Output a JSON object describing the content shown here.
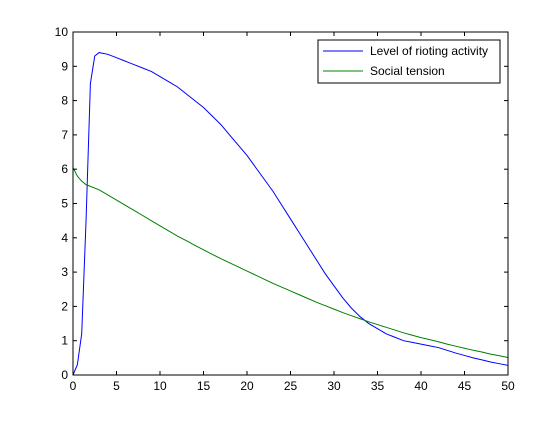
{
  "chart_data": {
    "type": "line",
    "title": "",
    "xlabel": "",
    "ylabel": "",
    "xlim": [
      0,
      50
    ],
    "ylim": [
      0,
      10
    ],
    "x_ticks": [
      "0",
      "5",
      "10",
      "15",
      "20",
      "25",
      "30",
      "35",
      "40",
      "45",
      "50"
    ],
    "y_ticks": [
      "0",
      "1",
      "2",
      "3",
      "4",
      "5",
      "6",
      "7",
      "8",
      "9",
      "10"
    ],
    "grid": false,
    "legend_position": "top-right",
    "series": [
      {
        "name": "Level of rioting activity",
        "color": "#0000ff",
        "points": [
          [
            0,
            0
          ],
          [
            0.5,
            0.3
          ],
          [
            1,
            1.2
          ],
          [
            1.5,
            4.5
          ],
          [
            2,
            8.5
          ],
          [
            2.5,
            9.3
          ],
          [
            3,
            9.4
          ],
          [
            4,
            9.35
          ],
          [
            5,
            9.25
          ],
          [
            6,
            9.15
          ],
          [
            7,
            9.05
          ],
          [
            8,
            8.95
          ],
          [
            9,
            8.85
          ],
          [
            10,
            8.7
          ],
          [
            11,
            8.55
          ],
          [
            12,
            8.4
          ],
          [
            13,
            8.2
          ],
          [
            14,
            8.0
          ],
          [
            15,
            7.8
          ],
          [
            16,
            7.55
          ],
          [
            17,
            7.3
          ],
          [
            18,
            7.0
          ],
          [
            19,
            6.7
          ],
          [
            20,
            6.4
          ],
          [
            21,
            6.05
          ],
          [
            22,
            5.7
          ],
          [
            23,
            5.35
          ],
          [
            24,
            4.95
          ],
          [
            25,
            4.55
          ],
          [
            26,
            4.15
          ],
          [
            27,
            3.75
          ],
          [
            28,
            3.35
          ],
          [
            29,
            2.95
          ],
          [
            30,
            2.6
          ],
          [
            31,
            2.25
          ],
          [
            32,
            1.95
          ],
          [
            33,
            1.7
          ],
          [
            34,
            1.5
          ],
          [
            35,
            1.35
          ],
          [
            36,
            1.2
          ],
          [
            37,
            1.1
          ],
          [
            38,
            1.0
          ],
          [
            39,
            0.95
          ],
          [
            40,
            0.9
          ],
          [
            41,
            0.85
          ],
          [
            42,
            0.8
          ],
          [
            43,
            0.72
          ],
          [
            44,
            0.64
          ],
          [
            45,
            0.57
          ],
          [
            46,
            0.5
          ],
          [
            47,
            0.44
          ],
          [
            48,
            0.38
          ],
          [
            49,
            0.33
          ],
          [
            50,
            0.28
          ]
        ]
      },
      {
        "name": "Social tension",
        "color": "#008000",
        "points": [
          [
            0,
            6.05
          ],
          [
            0.5,
            5.8
          ],
          [
            1,
            5.65
          ],
          [
            1.5,
            5.55
          ],
          [
            2,
            5.5
          ],
          [
            3,
            5.4
          ],
          [
            4,
            5.25
          ],
          [
            5,
            5.1
          ],
          [
            6,
            4.95
          ],
          [
            7,
            4.8
          ],
          [
            8,
            4.65
          ],
          [
            9,
            4.5
          ],
          [
            10,
            4.35
          ],
          [
            11,
            4.2
          ],
          [
            12,
            4.05
          ],
          [
            13,
            3.92
          ],
          [
            14,
            3.78
          ],
          [
            15,
            3.65
          ],
          [
            16,
            3.52
          ],
          [
            17,
            3.39
          ],
          [
            18,
            3.27
          ],
          [
            19,
            3.15
          ],
          [
            20,
            3.03
          ],
          [
            21,
            2.91
          ],
          [
            22,
            2.79
          ],
          [
            23,
            2.67
          ],
          [
            24,
            2.56
          ],
          [
            25,
            2.45
          ],
          [
            26,
            2.34
          ],
          [
            27,
            2.23
          ],
          [
            28,
            2.12
          ],
          [
            29,
            2.02
          ],
          [
            30,
            1.92
          ],
          [
            31,
            1.82
          ],
          [
            32,
            1.73
          ],
          [
            33,
            1.64
          ],
          [
            34,
            1.55
          ],
          [
            35,
            1.47
          ],
          [
            36,
            1.39
          ],
          [
            37,
            1.31
          ],
          [
            38,
            1.23
          ],
          [
            39,
            1.16
          ],
          [
            40,
            1.09
          ],
          [
            41,
            1.03
          ],
          [
            42,
            0.97
          ],
          [
            43,
            0.9
          ],
          [
            44,
            0.84
          ],
          [
            45,
            0.78
          ],
          [
            46,
            0.72
          ],
          [
            47,
            0.67
          ],
          [
            48,
            0.61
          ],
          [
            49,
            0.56
          ],
          [
            50,
            0.51
          ]
        ]
      }
    ]
  }
}
